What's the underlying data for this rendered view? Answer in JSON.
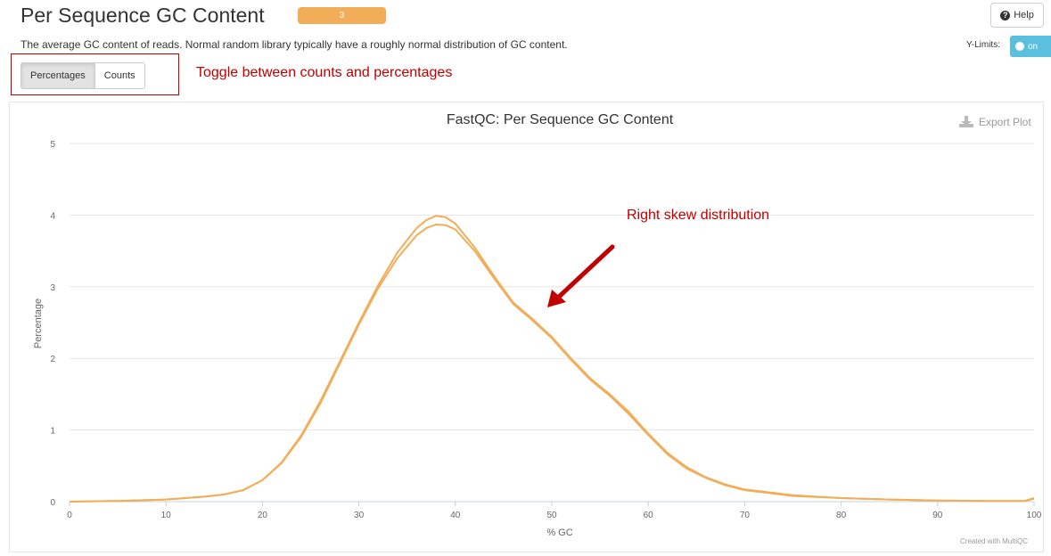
{
  "header": {
    "title": "Per Sequence GC Content",
    "badge": "3",
    "help_label": "Help",
    "description": "The average GC content of reads. Normal random library typically have a roughly normal distribution of GC content."
  },
  "controls": {
    "ylimits_label": "Y-Limits:",
    "ylimits_state": "on",
    "buttons": [
      "Percentages",
      "Counts"
    ],
    "active_button": "Percentages"
  },
  "annotations": {
    "toggle_note": "Toggle between counts and percentages",
    "skew_note": "Right skew distribution",
    "color": "#c00000"
  },
  "plot": {
    "export_label": "Export Plot",
    "credits": "Created with MultiQC"
  },
  "chart_data": {
    "type": "line",
    "title": "FastQC: Per Sequence GC Content",
    "xlabel": "% GC",
    "ylabel": "Percentage",
    "xlim": [
      0,
      100
    ],
    "ylim": [
      0,
      5
    ],
    "x_ticks": [
      0,
      10,
      20,
      30,
      40,
      50,
      60,
      70,
      80,
      90,
      100
    ],
    "y_ticks": [
      0,
      1,
      2,
      3,
      4,
      5
    ],
    "grid": true,
    "legend": "none",
    "line_color": "#f2ad59",
    "series": [
      {
        "x": [
          0,
          5,
          10,
          14,
          16,
          18,
          20,
          22,
          24,
          26,
          28,
          30,
          32,
          34,
          36,
          37,
          38,
          39,
          40,
          42,
          44,
          46,
          48,
          50,
          52,
          54,
          56,
          58,
          60,
          62,
          64,
          66,
          68,
          70,
          75,
          80,
          85,
          90,
          95,
          99,
          100
        ],
        "y": [
          0.0,
          0.01,
          0.03,
          0.07,
          0.1,
          0.16,
          0.3,
          0.55,
          0.92,
          1.4,
          1.95,
          2.5,
          3.02,
          3.48,
          3.82,
          3.93,
          3.99,
          3.97,
          3.88,
          3.55,
          3.15,
          2.78,
          2.55,
          2.3,
          2.0,
          1.72,
          1.5,
          1.25,
          0.95,
          0.68,
          0.48,
          0.34,
          0.24,
          0.17,
          0.09,
          0.05,
          0.03,
          0.015,
          0.01,
          0.01,
          0.05
        ]
      },
      {
        "x": [
          0,
          5,
          10,
          14,
          16,
          18,
          20,
          22,
          24,
          26,
          28,
          30,
          32,
          34,
          36,
          37,
          38,
          39,
          40,
          42,
          44,
          46,
          48,
          50,
          52,
          54,
          56,
          58,
          60,
          62,
          64,
          66,
          68,
          70,
          75,
          80,
          85,
          90,
          95,
          99,
          100
        ],
        "y": [
          0.0,
          0.01,
          0.03,
          0.07,
          0.1,
          0.16,
          0.3,
          0.54,
          0.9,
          1.37,
          1.92,
          2.47,
          2.98,
          3.4,
          3.72,
          3.82,
          3.87,
          3.86,
          3.8,
          3.5,
          3.12,
          2.76,
          2.53,
          2.28,
          1.98,
          1.7,
          1.48,
          1.22,
          0.93,
          0.66,
          0.46,
          0.33,
          0.23,
          0.16,
          0.08,
          0.05,
          0.03,
          0.015,
          0.01,
          0.01,
          0.04
        ]
      }
    ]
  },
  "icons": {
    "help": "question-circle-icon",
    "export": "download-icon",
    "arrow": "arrow-icon"
  }
}
